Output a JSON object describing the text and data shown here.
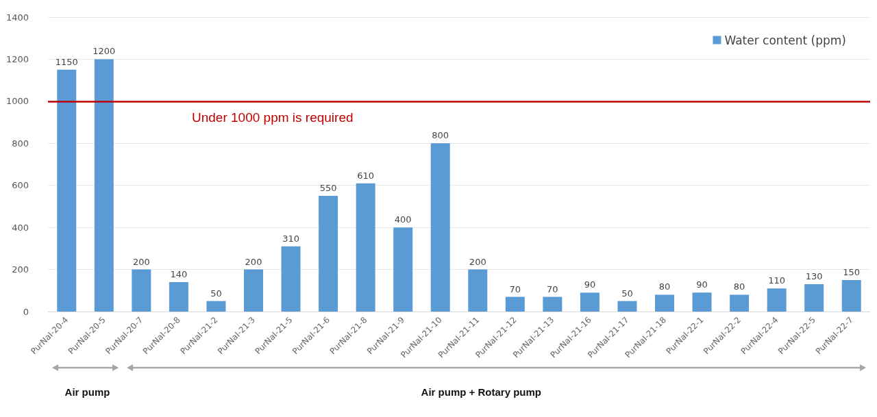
{
  "chart_data": {
    "type": "bar",
    "categories": [
      "PurNaI-20-4",
      "PurNaI-20-5",
      "PurNaI-20-7",
      "PurNaI-20-8",
      "PurNaI-21-2",
      "PurNaI-21-3",
      "PurNaI-21-5",
      "PurNaI-21-6",
      "PurNaI-21-8",
      "PurNaI-21-9",
      "PurNaI-21-10",
      "PurNaI-21-11",
      "PurNaI-21-12",
      "PurNaI-21-13",
      "PurNaI-21-16",
      "PurNaI-21-17",
      "PurNaI-21-18",
      "PurNaI-22-1",
      "PurNaI-22-2",
      "PurNaI-22-4",
      "PurNaI-22-5",
      "PurNaI-22-7"
    ],
    "series": [
      {
        "name": "Water content (ppm)",
        "color": "#5b9bd5",
        "values": [
          1150,
          1200,
          200,
          140,
          50,
          200,
          310,
          550,
          610,
          400,
          800,
          200,
          70,
          70,
          90,
          50,
          80,
          90,
          80,
          110,
          130,
          150
        ]
      }
    ],
    "ylim": [
      0,
      1400
    ],
    "yticks": [
      0,
      200,
      400,
      600,
      800,
      1000,
      1200,
      1400
    ],
    "ref_lines": [
      {
        "axis": "y",
        "value": 1000,
        "label": "Under 1000 ppm is required",
        "color": "#c00000"
      }
    ],
    "annotations": [
      "Air pump",
      "Air pump + Rotary pump"
    ],
    "data_labels": true,
    "grid": "y",
    "legend": "top right"
  }
}
